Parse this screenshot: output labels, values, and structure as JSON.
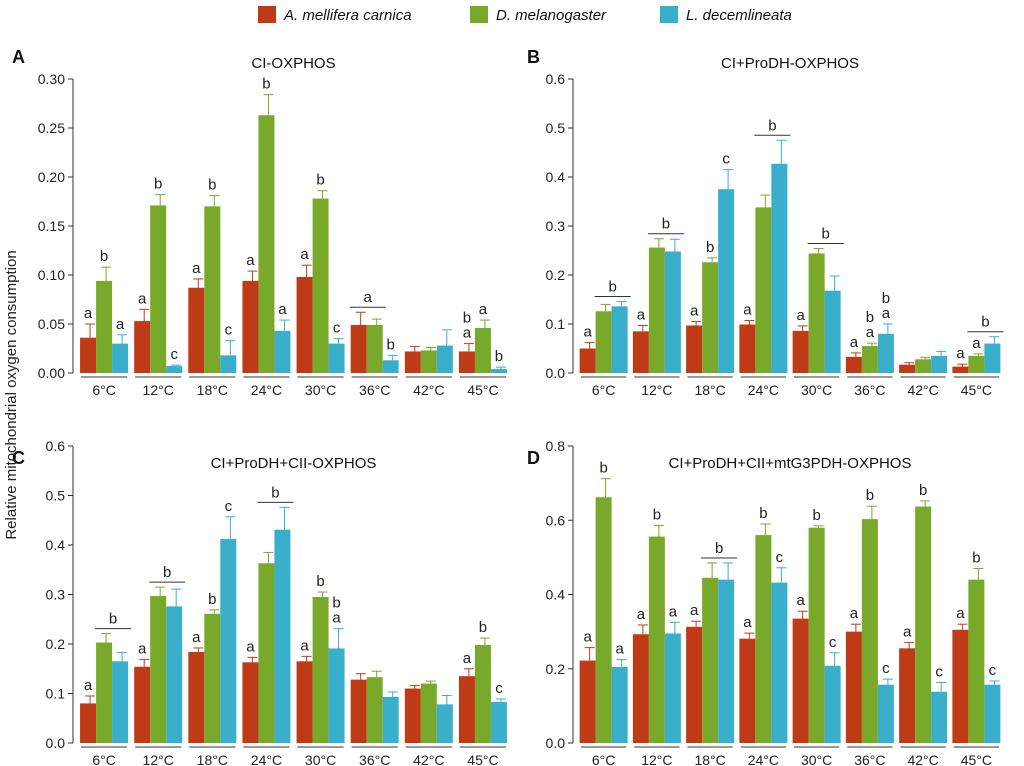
{
  "legend": [
    {
      "name": "A. mellifera carnica",
      "color": "#bf3b16"
    },
    {
      "name": "D. melanogaster",
      "color": "#79a92a"
    },
    {
      "name": "L. decemlineata",
      "color": "#39afcb"
    }
  ],
  "ylabel": "Relative mitochondrial oxygen consumption",
  "chart_data": [
    {
      "panel": "A",
      "type": "bar",
      "title": "CI-OXPHOS",
      "categories": [
        "6°C",
        "12°C",
        "18°C",
        "24°C",
        "30°C",
        "36°C",
        "42°C",
        "45°C"
      ],
      "ylim": [
        0,
        0.3
      ],
      "yticks": [
        "0.00",
        "0.05",
        "0.10",
        "0.15",
        "0.20",
        "0.25",
        "0.30"
      ],
      "series": [
        {
          "name": "A. mellifera carnica",
          "values": [
            0.036,
            0.053,
            0.087,
            0.094,
            0.098,
            0.049,
            0.022,
            0.022
          ],
          "errors": [
            0.014,
            0.012,
            0.009,
            0.01,
            0.012,
            0.013,
            0.005,
            0.008
          ]
        },
        {
          "name": "D. melanogaster",
          "values": [
            0.094,
            0.171,
            0.17,
            0.263,
            0.178,
            0.049,
            0.023,
            0.046
          ],
          "errors": [
            0.014,
            0.011,
            0.011,
            0.021,
            0.008,
            0.006,
            0.003,
            0.008
          ]
        },
        {
          "name": "L. decemlineata",
          "values": [
            0.03,
            0.007,
            0.018,
            0.043,
            0.03,
            0.013,
            0.028,
            0.004
          ],
          "errors": [
            0.009,
            0.001,
            0.015,
            0.011,
            0.005,
            0.005,
            0.016,
            0.002
          ]
        }
      ],
      "labels": [
        {
          "cat": 0,
          "bar": 0,
          "text": "a"
        },
        {
          "cat": 0,
          "bar": 1,
          "text": "b"
        },
        {
          "cat": 0,
          "bar": 2,
          "text": "a"
        },
        {
          "cat": 1,
          "bar": 0,
          "text": "a"
        },
        {
          "cat": 1,
          "bar": 1,
          "text": "b"
        },
        {
          "cat": 1,
          "bar": 2,
          "text": "c"
        },
        {
          "cat": 2,
          "bar": 0,
          "text": "a"
        },
        {
          "cat": 2,
          "bar": 1,
          "text": "b"
        },
        {
          "cat": 2,
          "bar": 2,
          "text": "c"
        },
        {
          "cat": 3,
          "bar": 0,
          "text": "a"
        },
        {
          "cat": 3,
          "bar": 1,
          "text": "b"
        },
        {
          "cat": 3,
          "bar": 2,
          "text": "a"
        },
        {
          "cat": 4,
          "bar": 0,
          "text": "a"
        },
        {
          "cat": 4,
          "bar": 1,
          "text": "b"
        },
        {
          "cat": 4,
          "bar": 2,
          "text": "c"
        },
        {
          "cat": 5,
          "bar": 2,
          "text": "b"
        },
        {
          "cat": 7,
          "bar": 0,
          "text": "a"
        },
        {
          "cat": 7,
          "bar": 0,
          "text": "b"
        },
        {
          "cat": 7,
          "bar": 1,
          "text": "a"
        },
        {
          "cat": 7,
          "bar": 2,
          "text": "b"
        }
      ],
      "group_labels": [
        {
          "cat": 5,
          "from": 0,
          "to": 1,
          "text": "a"
        }
      ]
    },
    {
      "panel": "B",
      "type": "bar",
      "title": "CI+ProDH-OXPHOS",
      "categories": [
        "6°C",
        "12°C",
        "18°C",
        "24°C",
        "30°C",
        "36°C",
        "42°C",
        "45°C"
      ],
      "ylim": [
        0,
        0.6
      ],
      "yticks": [
        "0.0",
        "0.1",
        "0.2",
        "0.3",
        "0.4",
        "0.5",
        "0.6"
      ],
      "series": [
        {
          "name": "A. mellifera carnica",
          "values": [
            0.05,
            0.085,
            0.097,
            0.099,
            0.086,
            0.033,
            0.017,
            0.013
          ],
          "errors": [
            0.012,
            0.012,
            0.008,
            0.008,
            0.01,
            0.008,
            0.004,
            0.005
          ]
        },
        {
          "name": "D. melanogaster",
          "values": [
            0.126,
            0.256,
            0.226,
            0.338,
            0.244,
            0.055,
            0.028,
            0.035
          ],
          "errors": [
            0.014,
            0.018,
            0.009,
            0.025,
            0.01,
            0.006,
            0.004,
            0.004
          ]
        },
        {
          "name": "L. decemlineata",
          "values": [
            0.136,
            0.248,
            0.375,
            0.427,
            0.168,
            0.08,
            0.035,
            0.06
          ],
          "errors": [
            0.01,
            0.025,
            0.04,
            0.048,
            0.03,
            0.02,
            0.009,
            0.014
          ]
        }
      ],
      "labels": [
        {
          "cat": 0,
          "bar": 0,
          "text": "a"
        },
        {
          "cat": 1,
          "bar": 0,
          "text": "a"
        },
        {
          "cat": 2,
          "bar": 0,
          "text": "a"
        },
        {
          "cat": 2,
          "bar": 1,
          "text": "b"
        },
        {
          "cat": 2,
          "bar": 2,
          "text": "c"
        },
        {
          "cat": 3,
          "bar": 0,
          "text": "a"
        },
        {
          "cat": 4,
          "bar": 0,
          "text": "a"
        },
        {
          "cat": 5,
          "bar": 0,
          "text": "a"
        },
        {
          "cat": 5,
          "bar": 1,
          "text": "a"
        },
        {
          "cat": 5,
          "bar": 1,
          "text": "b"
        },
        {
          "cat": 5,
          "bar": 2,
          "text": "a"
        },
        {
          "cat": 5,
          "bar": 2,
          "text": "b"
        },
        {
          "cat": 7,
          "bar": 0,
          "text": "a"
        },
        {
          "cat": 7,
          "bar": 1,
          "text": "a"
        }
      ],
      "group_labels": [
        {
          "cat": 0,
          "from": 1,
          "to": 2,
          "text": "b"
        },
        {
          "cat": 1,
          "from": 1,
          "to": 2,
          "text": "b"
        },
        {
          "cat": 3,
          "from": 1,
          "to": 2,
          "text": "b"
        },
        {
          "cat": 4,
          "from": 1,
          "to": 2,
          "text": "b"
        },
        {
          "cat": 7,
          "from": 1,
          "to": 2,
          "text": "b"
        }
      ]
    },
    {
      "panel": "C",
      "type": "bar",
      "title": "CI+ProDH+CII-OXPHOS",
      "categories": [
        "6°C",
        "12°C",
        "18°C",
        "24°C",
        "30°C",
        "36°C",
        "42°C",
        "45°C"
      ],
      "ylim": [
        0,
        0.6
      ],
      "yticks": [
        "0.0",
        "0.1",
        "0.2",
        "0.3",
        "0.4",
        "0.5",
        "0.6"
      ],
      "series": [
        {
          "name": "A. mellifera carnica",
          "values": [
            0.08,
            0.154,
            0.184,
            0.163,
            0.165,
            0.128,
            0.11,
            0.135
          ],
          "errors": [
            0.015,
            0.015,
            0.008,
            0.01,
            0.01,
            0.012,
            0.006,
            0.015
          ]
        },
        {
          "name": "D. melanogaster",
          "values": [
            0.203,
            0.297,
            0.261,
            0.363,
            0.295,
            0.133,
            0.12,
            0.198
          ],
          "errors": [
            0.018,
            0.018,
            0.008,
            0.022,
            0.01,
            0.012,
            0.005,
            0.014
          ]
        },
        {
          "name": "L. decemlineata",
          "values": [
            0.165,
            0.276,
            0.412,
            0.431,
            0.191,
            0.093,
            0.078,
            0.083
          ],
          "errors": [
            0.018,
            0.035,
            0.045,
            0.045,
            0.04,
            0.01,
            0.018,
            0.006
          ]
        }
      ],
      "labels": [
        {
          "cat": 0,
          "bar": 0,
          "text": "a"
        },
        {
          "cat": 1,
          "bar": 0,
          "text": "a"
        },
        {
          "cat": 2,
          "bar": 0,
          "text": "a"
        },
        {
          "cat": 2,
          "bar": 1,
          "text": "b"
        },
        {
          "cat": 2,
          "bar": 2,
          "text": "c"
        },
        {
          "cat": 3,
          "bar": 0,
          "text": "a"
        },
        {
          "cat": 4,
          "bar": 0,
          "text": "a"
        },
        {
          "cat": 4,
          "bar": 1,
          "text": "b"
        },
        {
          "cat": 4,
          "bar": 2,
          "text": "a"
        },
        {
          "cat": 4,
          "bar": 2,
          "text": "b"
        },
        {
          "cat": 7,
          "bar": 0,
          "text": "a"
        },
        {
          "cat": 7,
          "bar": 1,
          "text": "b"
        },
        {
          "cat": 7,
          "bar": 2,
          "text": "c"
        }
      ],
      "group_labels": [
        {
          "cat": 0,
          "from": 1,
          "to": 2,
          "text": "b"
        },
        {
          "cat": 1,
          "from": 1,
          "to": 2,
          "text": "b"
        },
        {
          "cat": 3,
          "from": 1,
          "to": 2,
          "text": "b"
        }
      ]
    },
    {
      "panel": "D",
      "type": "bar",
      "title": "CI+ProDH+CII+mtG3PDH-OXPHOS",
      "categories": [
        "6°C",
        "12°C",
        "18°C",
        "24°C",
        "30°C",
        "36°C",
        "42°C",
        "45°C"
      ],
      "ylim": [
        0,
        0.8
      ],
      "yticks": [
        "0.0",
        "0.2",
        "0.4",
        "0.6",
        "0.8"
      ],
      "series": [
        {
          "name": "A. mellifera carnica",
          "values": [
            0.222,
            0.293,
            0.313,
            0.281,
            0.335,
            0.3,
            0.255,
            0.305
          ],
          "errors": [
            0.035,
            0.025,
            0.015,
            0.015,
            0.02,
            0.02,
            0.016,
            0.015
          ]
        },
        {
          "name": "D. melanogaster",
          "values": [
            0.662,
            0.556,
            0.445,
            0.56,
            0.58,
            0.603,
            0.637,
            0.44
          ],
          "errors": [
            0.05,
            0.03,
            0.04,
            0.03,
            0.005,
            0.035,
            0.015,
            0.03
          ]
        },
        {
          "name": "L. decemlineata",
          "values": [
            0.205,
            0.295,
            0.44,
            0.432,
            0.208,
            0.157,
            0.138,
            0.157
          ],
          "errors": [
            0.02,
            0.03,
            0.045,
            0.04,
            0.035,
            0.015,
            0.025,
            0.01
          ]
        }
      ],
      "labels": [
        {
          "cat": 0,
          "bar": 0,
          "text": "a"
        },
        {
          "cat": 0,
          "bar": 1,
          "text": "b"
        },
        {
          "cat": 0,
          "bar": 2,
          "text": "a"
        },
        {
          "cat": 1,
          "bar": 0,
          "text": "a"
        },
        {
          "cat": 1,
          "bar": 1,
          "text": "b"
        },
        {
          "cat": 1,
          "bar": 2,
          "text": "a"
        },
        {
          "cat": 2,
          "bar": 0,
          "text": "a"
        },
        {
          "cat": 3,
          "bar": 0,
          "text": "a"
        },
        {
          "cat": 3,
          "bar": 1,
          "text": "b"
        },
        {
          "cat": 3,
          "bar": 2,
          "text": "c"
        },
        {
          "cat": 4,
          "bar": 0,
          "text": "a"
        },
        {
          "cat": 4,
          "bar": 1,
          "text": "b"
        },
        {
          "cat": 4,
          "bar": 2,
          "text": "c"
        },
        {
          "cat": 5,
          "bar": 0,
          "text": "a"
        },
        {
          "cat": 5,
          "bar": 1,
          "text": "b"
        },
        {
          "cat": 5,
          "bar": 2,
          "text": "c"
        },
        {
          "cat": 6,
          "bar": 0,
          "text": "a"
        },
        {
          "cat": 6,
          "bar": 1,
          "text": "b"
        },
        {
          "cat": 6,
          "bar": 2,
          "text": "c"
        },
        {
          "cat": 7,
          "bar": 0,
          "text": "a"
        },
        {
          "cat": 7,
          "bar": 1,
          "text": "b"
        },
        {
          "cat": 7,
          "bar": 2,
          "text": "c"
        }
      ],
      "group_labels": [
        {
          "cat": 2,
          "from": 1,
          "to": 2,
          "text": "b"
        }
      ]
    }
  ]
}
